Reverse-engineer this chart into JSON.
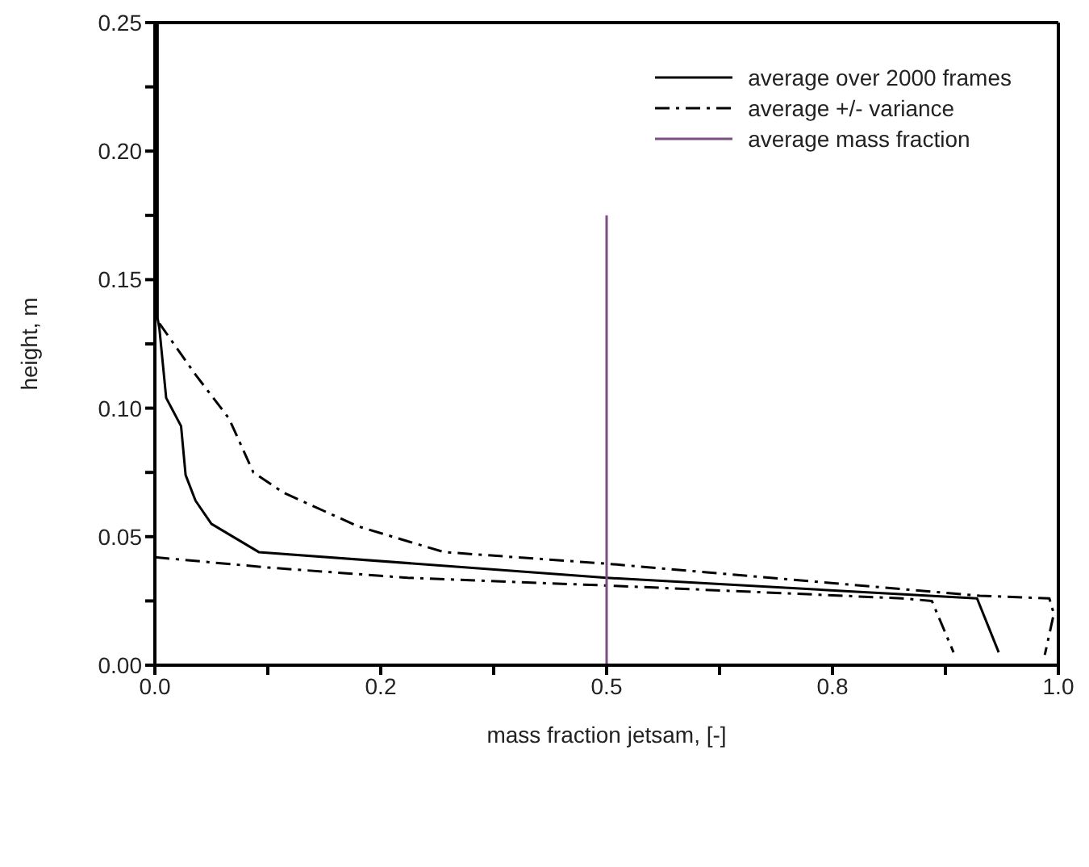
{
  "chart_data": {
    "type": "line",
    "xlabel": "mass fraction jetsam, [-]",
    "ylabel": "height, m",
    "xlim": [
      0,
      1
    ],
    "ylim": [
      0,
      0.25
    ],
    "xticks": [
      {
        "value": 0,
        "label": "0.0"
      },
      {
        "value": 0.125,
        "label": null
      },
      {
        "value": 0.25,
        "label": "0.2"
      },
      {
        "value": 0.375,
        "label": null
      },
      {
        "value": 0.5,
        "label": "0.5"
      },
      {
        "value": 0.625,
        "label": null
      },
      {
        "value": 0.75,
        "label": "0.8"
      },
      {
        "value": 0.875,
        "label": null
      },
      {
        "value": 1,
        "label": "1.0"
      }
    ],
    "yticks": [
      {
        "value": 0,
        "label": "0.00"
      },
      {
        "value": 0.025,
        "label": null
      },
      {
        "value": 0.05,
        "label": "0.05"
      },
      {
        "value": 0.075,
        "label": null
      },
      {
        "value": 0.1,
        "label": "0.10"
      },
      {
        "value": 0.125,
        "label": null
      },
      {
        "value": 0.15,
        "label": "0.15"
      },
      {
        "value": 0.175,
        "label": null
      },
      {
        "value": 0.2,
        "label": "0.20"
      },
      {
        "value": 0.225,
        "label": null
      },
      {
        "value": 0.25,
        "label": "0.25"
      }
    ],
    "grid": false,
    "legend": "top right",
    "marker": "none",
    "series": [
      {
        "name": "average over 2000 frames",
        "color": "#000000",
        "line_style": "solid",
        "x": [
          0.003,
          0.003,
          0.005,
          0.0125,
          0.029,
          0.034,
          0.045,
          0.0625,
          0.115,
          0.5,
          0.91,
          0.934
        ],
        "values": [
          0.25,
          0.135,
          0.131,
          0.104,
          0.093,
          0.074,
          0.064,
          0.055,
          0.044,
          0.034,
          0.026,
          0.005
        ]
      },
      {
        "name": "average +/- variance",
        "color": "#000000",
        "line_style": "dashed",
        "x": [
          0.005,
          0.045,
          0.082,
          0.109,
          0.143,
          0.225,
          0.32,
          0.5,
          0.913,
          0.99,
          0.995,
          0.985
        ],
        "values": [
          0.133,
          0.113,
          0.096,
          0.075,
          0.067,
          0.054,
          0.044,
          0.0395,
          0.027,
          0.026,
          0.02,
          0.004
        ]
      },
      {
        "color": "#000000",
        "line_style": "dashed",
        "x": [
          0,
          0.125,
          0.28,
          0.5,
          0.827,
          0.86,
          0.884
        ],
        "values": [
          0.042,
          0.038,
          0.034,
          0.031,
          0.026,
          0.025,
          0.005
        ]
      },
      {
        "name": "average mass fraction",
        "color": "#7b4f7f",
        "line_style": "solid",
        "x": [
          0.5,
          0.5
        ],
        "values": [
          0,
          0.175
        ]
      }
    ]
  }
}
